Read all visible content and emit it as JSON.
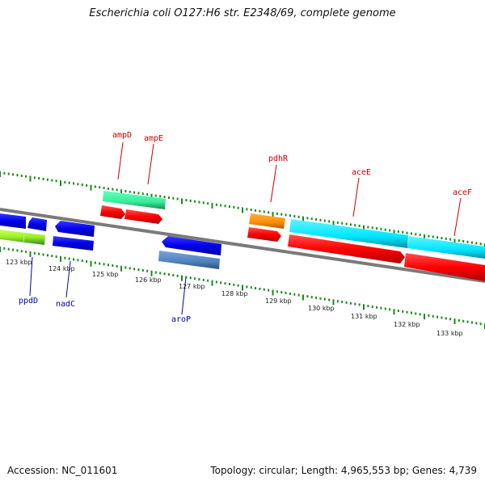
{
  "title": "Escherichia coli O127:H6 str. E2348/69, complete genome",
  "footer": {
    "accession": "Accession: NC_011601",
    "summary": "Topology: circular; Length: 4,965,553 bp; Genes: 4,739"
  },
  "scale_labels": [
    "123 kbp",
    "124 kbp",
    "125 kbp",
    "126 kbp",
    "127 kbp",
    "128 kbp",
    "129 kbp",
    "130 kbp",
    "131 kbp",
    "132 kbp",
    "133 kbp"
  ],
  "gene_labels": [
    {
      "name": "ampD",
      "color": "#cc0000"
    },
    {
      "name": "ampE",
      "color": "#cc0000"
    },
    {
      "name": "pdhR",
      "color": "#cc0000"
    },
    {
      "name": "aceE",
      "color": "#cc0000"
    },
    {
      "name": "aceF",
      "color": "#cc0000"
    },
    {
      "name": "ppdD",
      "color": "#0000aa"
    },
    {
      "name": "nadC",
      "color": "#0000aa"
    },
    {
      "name": "aroP",
      "color": "#0000aa"
    }
  ],
  "colors": {
    "backbone": "#7a7a7a",
    "tick": "#1a8a1a",
    "cds_red": "#ff0000",
    "cds_blue": "#0000ee",
    "cds_green": "#33ee99",
    "cds_cyan": "#00e6ff",
    "cds_orange": "#ff8c00",
    "cds_steel": "#4f81bd",
    "cds_lime": "#99ee22"
  }
}
